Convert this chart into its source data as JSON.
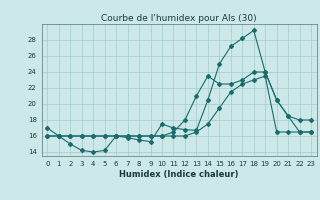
{
  "title": "Courbe de l'humidex pour Als (30)",
  "xlabel": "Humidex (Indice chaleur)",
  "bg_color": "#cde8e8",
  "line_color": "#1a6b6b",
  "grid_color": "#aad0d0",
  "x_ticks": [
    0,
    1,
    2,
    3,
    4,
    5,
    6,
    7,
    8,
    9,
    10,
    11,
    12,
    13,
    14,
    15,
    16,
    17,
    18,
    19,
    20,
    21,
    22,
    23
  ],
  "ylim": [
    13.5,
    30.0
  ],
  "y_ticks": [
    14,
    16,
    18,
    20,
    22,
    24,
    26,
    28
  ],
  "series1_x": [
    0,
    1,
    2,
    3,
    4,
    5,
    6,
    7,
    8,
    9,
    10,
    11,
    12,
    13,
    14,
    15,
    16,
    17,
    18,
    19,
    20,
    21,
    22,
    23
  ],
  "series1_y": [
    17.0,
    16.0,
    15.0,
    14.2,
    14.0,
    14.2,
    16.0,
    15.8,
    15.5,
    15.3,
    17.5,
    17.0,
    16.8,
    16.7,
    20.5,
    25.0,
    27.2,
    28.2,
    29.2,
    24.0,
    20.5,
    18.5,
    18.0,
    18.0
  ],
  "series2_x": [
    0,
    1,
    2,
    3,
    4,
    5,
    6,
    7,
    8,
    9,
    10,
    11,
    12,
    13,
    14,
    15,
    16,
    17,
    18,
    19,
    20,
    21,
    22,
    23
  ],
  "series2_y": [
    16.0,
    16.0,
    16.0,
    16.0,
    16.0,
    16.0,
    16.0,
    16.0,
    16.0,
    16.0,
    16.0,
    16.0,
    16.0,
    16.5,
    17.5,
    19.5,
    21.5,
    22.5,
    23.0,
    23.5,
    16.5,
    16.5,
    16.5,
    16.5
  ],
  "series3_x": [
    0,
    1,
    2,
    3,
    4,
    5,
    6,
    7,
    8,
    9,
    10,
    11,
    12,
    13,
    14,
    15,
    16,
    17,
    18,
    19,
    20,
    21,
    22,
    23
  ],
  "series3_y": [
    16.0,
    16.0,
    16.0,
    16.0,
    16.0,
    16.0,
    16.0,
    16.0,
    16.0,
    16.0,
    16.0,
    16.5,
    18.0,
    21.0,
    23.5,
    22.5,
    22.5,
    23.0,
    24.0,
    24.0,
    20.5,
    18.5,
    16.5,
    16.5
  ],
  "title_fontsize": 6.5,
  "xlabel_fontsize": 6,
  "tick_fontsize": 5
}
